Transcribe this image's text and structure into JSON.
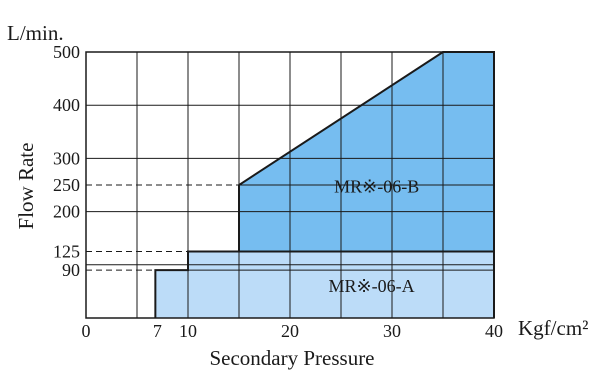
{
  "chart_data": {
    "type": "area",
    "title": "",
    "ylabel": "Flow Rate",
    "y_unit": "L/min.",
    "xlabel": "Secondary Pressure",
    "x_unit": "Kgf/cm²",
    "xlim": [
      0,
      40
    ],
    "ylim": [
      0,
      500
    ],
    "grid": true,
    "x_ticks": [
      {
        "value": 0,
        "label": "0"
      },
      {
        "value": 7,
        "label": "7"
      },
      {
        "value": 10,
        "label": "10"
      },
      {
        "value": 20,
        "label": "20"
      },
      {
        "value": 30,
        "label": "30"
      },
      {
        "value": 40,
        "label": "40"
      }
    ],
    "y_ticks": [
      {
        "value": 90,
        "label": "90"
      },
      {
        "value": 125,
        "label": "125"
      },
      {
        "value": 200,
        "label": "200"
      },
      {
        "value": 250,
        "label": "250"
      },
      {
        "value": 300,
        "label": "300"
      },
      {
        "value": 400,
        "label": "400"
      },
      {
        "value": 500,
        "label": "500"
      }
    ],
    "x_gridlines": [
      0,
      5,
      10,
      15,
      20,
      25,
      30,
      35,
      40
    ],
    "y_gridlines": [
      0,
      100,
      200,
      300,
      400,
      500
    ],
    "reference_lines": [
      90,
      125,
      250
    ],
    "series": [
      {
        "name": "MR※-06-A",
        "color": "#bcdcf8",
        "label_position": {
          "x": 28,
          "y": 60
        },
        "points": [
          [
            6.8,
            0
          ],
          [
            6.8,
            90
          ],
          [
            10,
            90
          ],
          [
            10,
            125
          ],
          [
            40,
            125
          ],
          [
            40,
            0
          ]
        ]
      },
      {
        "name": "MR※-06-B",
        "color": "#76bdf0",
        "label_position": {
          "x": 28.5,
          "y": 247
        },
        "points": [
          [
            15,
            125
          ],
          [
            15,
            250
          ],
          [
            35,
            500
          ],
          [
            40,
            500
          ],
          [
            40,
            125
          ]
        ]
      }
    ]
  }
}
